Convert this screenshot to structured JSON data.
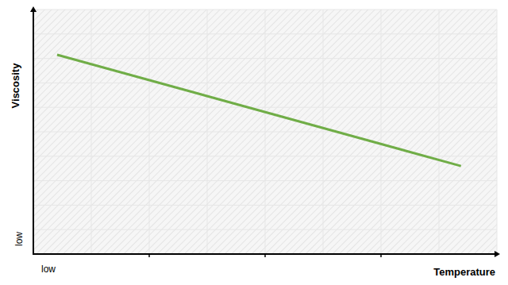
{
  "chart_data": {
    "type": "line",
    "x_label": "Temperature",
    "y_label": "Viscosity",
    "x": [
      0.41,
      7.38
    ],
    "values": [
      8.15,
      3.6
    ],
    "color": "#70ad47",
    "xlim": [
      0,
      8
    ],
    "ylim": [
      0,
      10
    ],
    "xticks": [
      {
        "value": 0,
        "label": "low"
      }
    ],
    "yticks": [
      {
        "value": 0,
        "label": "low"
      }
    ],
    "grid": true
  }
}
